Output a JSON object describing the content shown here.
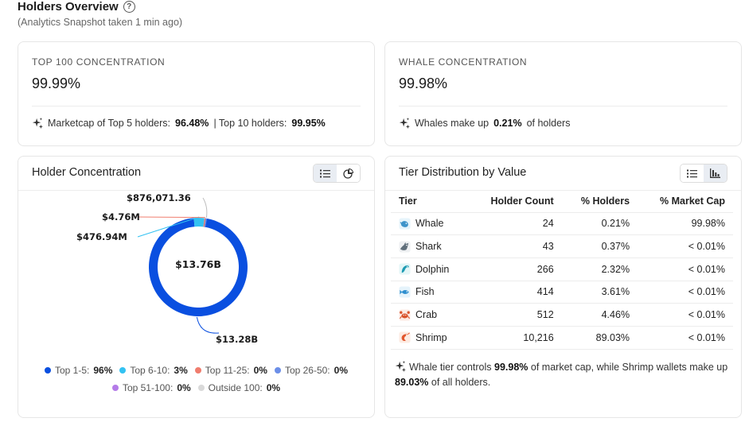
{
  "header": {
    "title": "Holders Overview",
    "help_glyph": "?",
    "subtitle": "(Analytics Snapshot taken 1 min ago)"
  },
  "top100": {
    "label": "TOP 100 CONCENTRATION",
    "value": "99.99%",
    "note_prefix": "Marketcap of Top 5 holders:",
    "top5": "96.48%",
    "note_sep": "| Top 10 holders:",
    "top10": "99.95%"
  },
  "whale": {
    "label": "WHALE CONCENTRATION",
    "value": "99.98%",
    "note_prefix": "Whales make up",
    "pct": "0.21%",
    "note_suffix": "of holders"
  },
  "holder_concentration": {
    "title": "Holder Concentration",
    "center_label": "$13.76B",
    "callouts": [
      "$876,071.36",
      "$4.76M",
      "$476.94M",
      "$13.28B"
    ],
    "legend": [
      {
        "label": "Top 1-5:",
        "value": "96%",
        "color": "#0a4fe0"
      },
      {
        "label": "Top 6-10:",
        "value": "3%",
        "color": "#33c2f2"
      },
      {
        "label": "Top 11-25:",
        "value": "0%",
        "color": "#f07d6e"
      },
      {
        "label": "Top 26-50:",
        "value": "0%",
        "color": "#6c8fe8"
      },
      {
        "label": "Top 51-100:",
        "value": "0%",
        "color": "#b47be8"
      },
      {
        "label": "Outside 100:",
        "value": "0%",
        "color": "#d9d9d9"
      }
    ]
  },
  "chart_data": {
    "type": "pie",
    "categories": [
      "Top 1-5",
      "Top 6-10",
      "Top 11-25",
      "Top 26-50",
      "Top 51-100",
      "Outside 100"
    ],
    "values": [
      13280000000,
      476940000,
      4760000,
      876071.36,
      0,
      0
    ],
    "value_labels": [
      "$13.28B",
      "$476.94M",
      "$4.76M",
      "$876,071.36",
      "",
      ""
    ],
    "total_label": "$13.76B",
    "legend_placement": "bottom",
    "colors": [
      "#0a4fe0",
      "#33c2f2",
      "#f07d6e",
      "#6c8fe8",
      "#b47be8",
      "#d9d9d9"
    ]
  },
  "tier_distribution": {
    "title": "Tier Distribution by Value",
    "columns": [
      "Tier",
      "Holder Count",
      "% Holders",
      "% Market Cap"
    ],
    "rows": [
      {
        "tier": "Whale",
        "icon": "whale-icon",
        "count": "24",
        "holders": "0.21%",
        "mcap": "99.98%"
      },
      {
        "tier": "Shark",
        "icon": "shark-icon",
        "count": "43",
        "holders": "0.37%",
        "mcap": "< 0.01%"
      },
      {
        "tier": "Dolphin",
        "icon": "dolphin-icon",
        "count": "266",
        "holders": "2.32%",
        "mcap": "< 0.01%"
      },
      {
        "tier": "Fish",
        "icon": "fish-icon",
        "count": "414",
        "holders": "3.61%",
        "mcap": "< 0.01%"
      },
      {
        "tier": "Crab",
        "icon": "crab-icon",
        "count": "512",
        "holders": "4.46%",
        "mcap": "< 0.01%"
      },
      {
        "tier": "Shrimp",
        "icon": "shrimp-icon",
        "count": "10,216",
        "holders": "89.03%",
        "mcap": "< 0.01%"
      }
    ],
    "note_p1": "Whale tier controls",
    "note_v1": "99.98%",
    "note_p2": "of market cap, while Shrimp wallets make up",
    "note_v2": "89.03%",
    "note_p3": "of all holders."
  }
}
